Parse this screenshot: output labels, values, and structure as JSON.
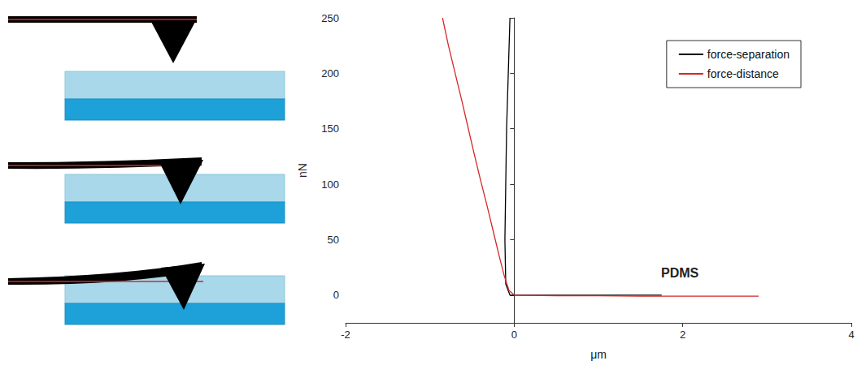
{
  "chart_data": {
    "type": "line",
    "x_label": "μm",
    "y_label": "nN",
    "xlim": [
      -2,
      4
    ],
    "ylim": [
      -25,
      250
    ],
    "xticks": [
      -2,
      0,
      2,
      4
    ],
    "yticks": [
      0,
      50,
      100,
      150,
      200,
      250
    ],
    "grid": false,
    "legend": "upper right",
    "annotations": [
      "PDMS"
    ],
    "series": [
      {
        "name": "force-separation",
        "color": "#000000",
        "marker": "none",
        "line_style": "solid",
        "x": [
          -0.05,
          -0.07,
          -0.09,
          -0.1,
          -0.11,
          -0.1,
          -0.05,
          0.5,
          1.0,
          1.75
        ],
        "values": [
          250,
          200,
          150,
          100,
          50,
          10,
          0,
          0,
          0,
          0
        ]
      },
      {
        "name": "force-distance",
        "color": "#d62728",
        "marker": "none",
        "line_style": "solid",
        "x": [
          -0.85,
          -0.78,
          -0.7,
          -0.62,
          -0.55,
          -0.47,
          -0.4,
          -0.32,
          -0.25,
          -0.18,
          -0.12,
          -0.06,
          0,
          0.5,
          1.0,
          1.5,
          2.0,
          2.5,
          2.9
        ],
        "values": [
          250,
          225,
          200,
          175,
          152,
          126,
          104,
          80,
          58,
          36,
          18,
          4,
          0,
          -0.5,
          -0.5,
          -1,
          -1,
          -1,
          -1
        ]
      }
    ]
  }
}
